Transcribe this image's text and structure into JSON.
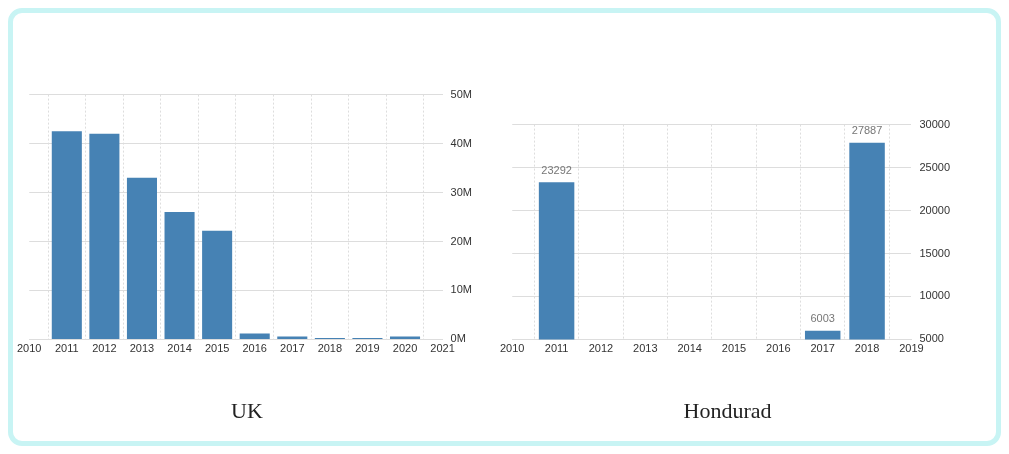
{
  "chart_data": [
    {
      "type": "bar",
      "title": "UK",
      "x": [
        2011,
        2012,
        2013,
        2014,
        2015,
        2016,
        2017,
        2018,
        2019,
        2020
      ],
      "series": [
        {
          "color": "#4682b4",
          "values": [
            42.5,
            42,
            33,
            26,
            22.2,
            1.2,
            0.6,
            0.3,
            0.3,
            0.6
          ]
        }
      ],
      "xlim": [
        2010,
        2021
      ],
      "xticks": [
        2010,
        2011,
        2012,
        2013,
        2014,
        2015,
        2016,
        2017,
        2018,
        2019,
        2020,
        2021
      ],
      "ylim": [
        0,
        50
      ],
      "yticks": [
        {
          "value": 0,
          "label": "0M"
        },
        {
          "value": 10,
          "label": "10M"
        },
        {
          "value": 20,
          "label": "20M"
        },
        {
          "value": 30,
          "label": "30M"
        },
        {
          "value": 40,
          "label": "40M"
        },
        {
          "value": 50,
          "label": "50M"
        }
      ],
      "grid": true
    },
    {
      "type": "bar",
      "title": "Hondurad",
      "x": [
        2011,
        2017,
        2018
      ],
      "series": [
        {
          "color": "#4682b4",
          "values": [
            23292,
            6003,
            27887
          ]
        }
      ],
      "xlim": [
        2010,
        2019
      ],
      "xticks": [
        2010,
        2011,
        2012,
        2013,
        2014,
        2015,
        2016,
        2017,
        2018,
        2019
      ],
      "ylim": [
        5000,
        30000
      ],
      "yticks": [
        5000,
        10000,
        15000,
        20000,
        25000,
        30000
      ],
      "grid": true,
      "data_labels": true
    }
  ]
}
